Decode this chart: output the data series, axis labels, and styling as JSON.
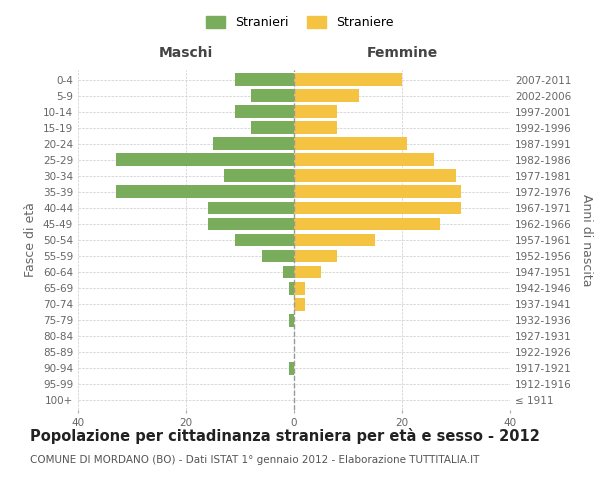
{
  "age_groups": [
    "100+",
    "95-99",
    "90-94",
    "85-89",
    "80-84",
    "75-79",
    "70-74",
    "65-69",
    "60-64",
    "55-59",
    "50-54",
    "45-49",
    "40-44",
    "35-39",
    "30-34",
    "25-29",
    "20-24",
    "15-19",
    "10-14",
    "5-9",
    "0-4"
  ],
  "birth_years": [
    "≤ 1911",
    "1912-1916",
    "1917-1921",
    "1922-1926",
    "1927-1931",
    "1932-1936",
    "1937-1941",
    "1942-1946",
    "1947-1951",
    "1952-1956",
    "1957-1961",
    "1962-1966",
    "1967-1971",
    "1972-1976",
    "1977-1981",
    "1982-1986",
    "1987-1991",
    "1992-1996",
    "1997-2001",
    "2002-2006",
    "2007-2011"
  ],
  "maschi": [
    0,
    0,
    1,
    0,
    0,
    1,
    0,
    1,
    2,
    6,
    11,
    16,
    16,
    33,
    13,
    33,
    15,
    8,
    11,
    8,
    11
  ],
  "femmine": [
    0,
    0,
    0,
    0,
    0,
    0,
    2,
    2,
    5,
    8,
    15,
    27,
    31,
    31,
    30,
    26,
    21,
    8,
    8,
    12,
    20
  ],
  "maschi_color": "#7aad5b",
  "femmine_color": "#f5c342",
  "background_color": "#ffffff",
  "grid_color": "#cccccc",
  "title": "Popolazione per cittadinanza straniera per età e sesso - 2012",
  "subtitle": "COMUNE DI MORDANO (BO) - Dati ISTAT 1° gennaio 2012 - Elaborazione TUTTITALIA.IT",
  "xlabel_left": "Maschi",
  "xlabel_right": "Femmine",
  "ylabel_left": "Fasce di età",
  "ylabel_right": "Anni di nascita",
  "xlim": 40,
  "legend_maschi": "Stranieri",
  "legend_femmine": "Straniere",
  "bar_height": 0.8,
  "title_fontsize": 10.5,
  "subtitle_fontsize": 7.5,
  "axis_label_fontsize": 9,
  "tick_fontsize": 7.5,
  "legend_fontsize": 9
}
